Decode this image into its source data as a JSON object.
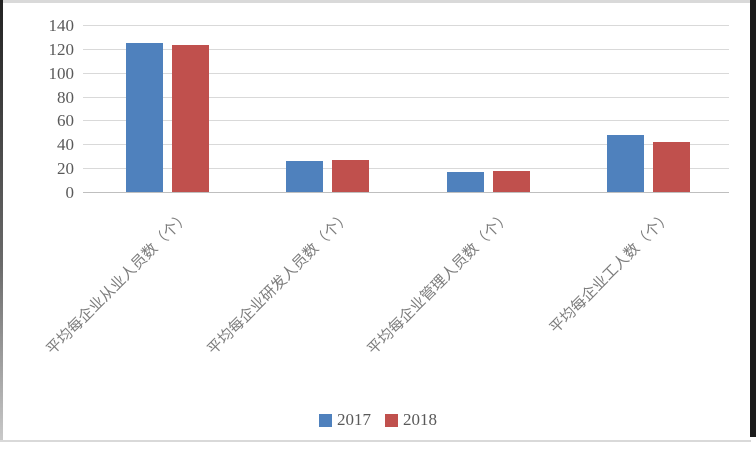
{
  "chart_data": {
    "type": "bar",
    "title": "",
    "xlabel": "",
    "ylabel": "",
    "categories": [
      "平均每企业从业人员数（个）",
      "平均每企业研发人员数（个）",
      "平均每企业管理人员数（个）",
      "平均每企业工人数（个）"
    ],
    "series": [
      {
        "name": "2017",
        "color": "#4f81bd",
        "values": [
          125,
          26,
          17,
          48
        ]
      },
      {
        "name": "2018",
        "color": "#c0504d",
        "values": [
          123,
          27,
          18,
          42
        ]
      }
    ],
    "ylim": [
      0,
      140
    ],
    "yticks": [
      0,
      20,
      40,
      60,
      80,
      100,
      120,
      140
    ],
    "grid": true,
    "legend_position": "bottom-center"
  },
  "colors": {
    "series_2017": "#4f81bd",
    "series_2018": "#c0504d",
    "gridline": "#d9d9d9",
    "axis_line": "#bfbfbf",
    "tick_text": "#595959",
    "category_text": "#7c7c7c"
  },
  "legend": {
    "items": [
      {
        "label": "2017",
        "color": "#4f81bd"
      },
      {
        "label": "2018",
        "color": "#c0504d"
      }
    ]
  }
}
